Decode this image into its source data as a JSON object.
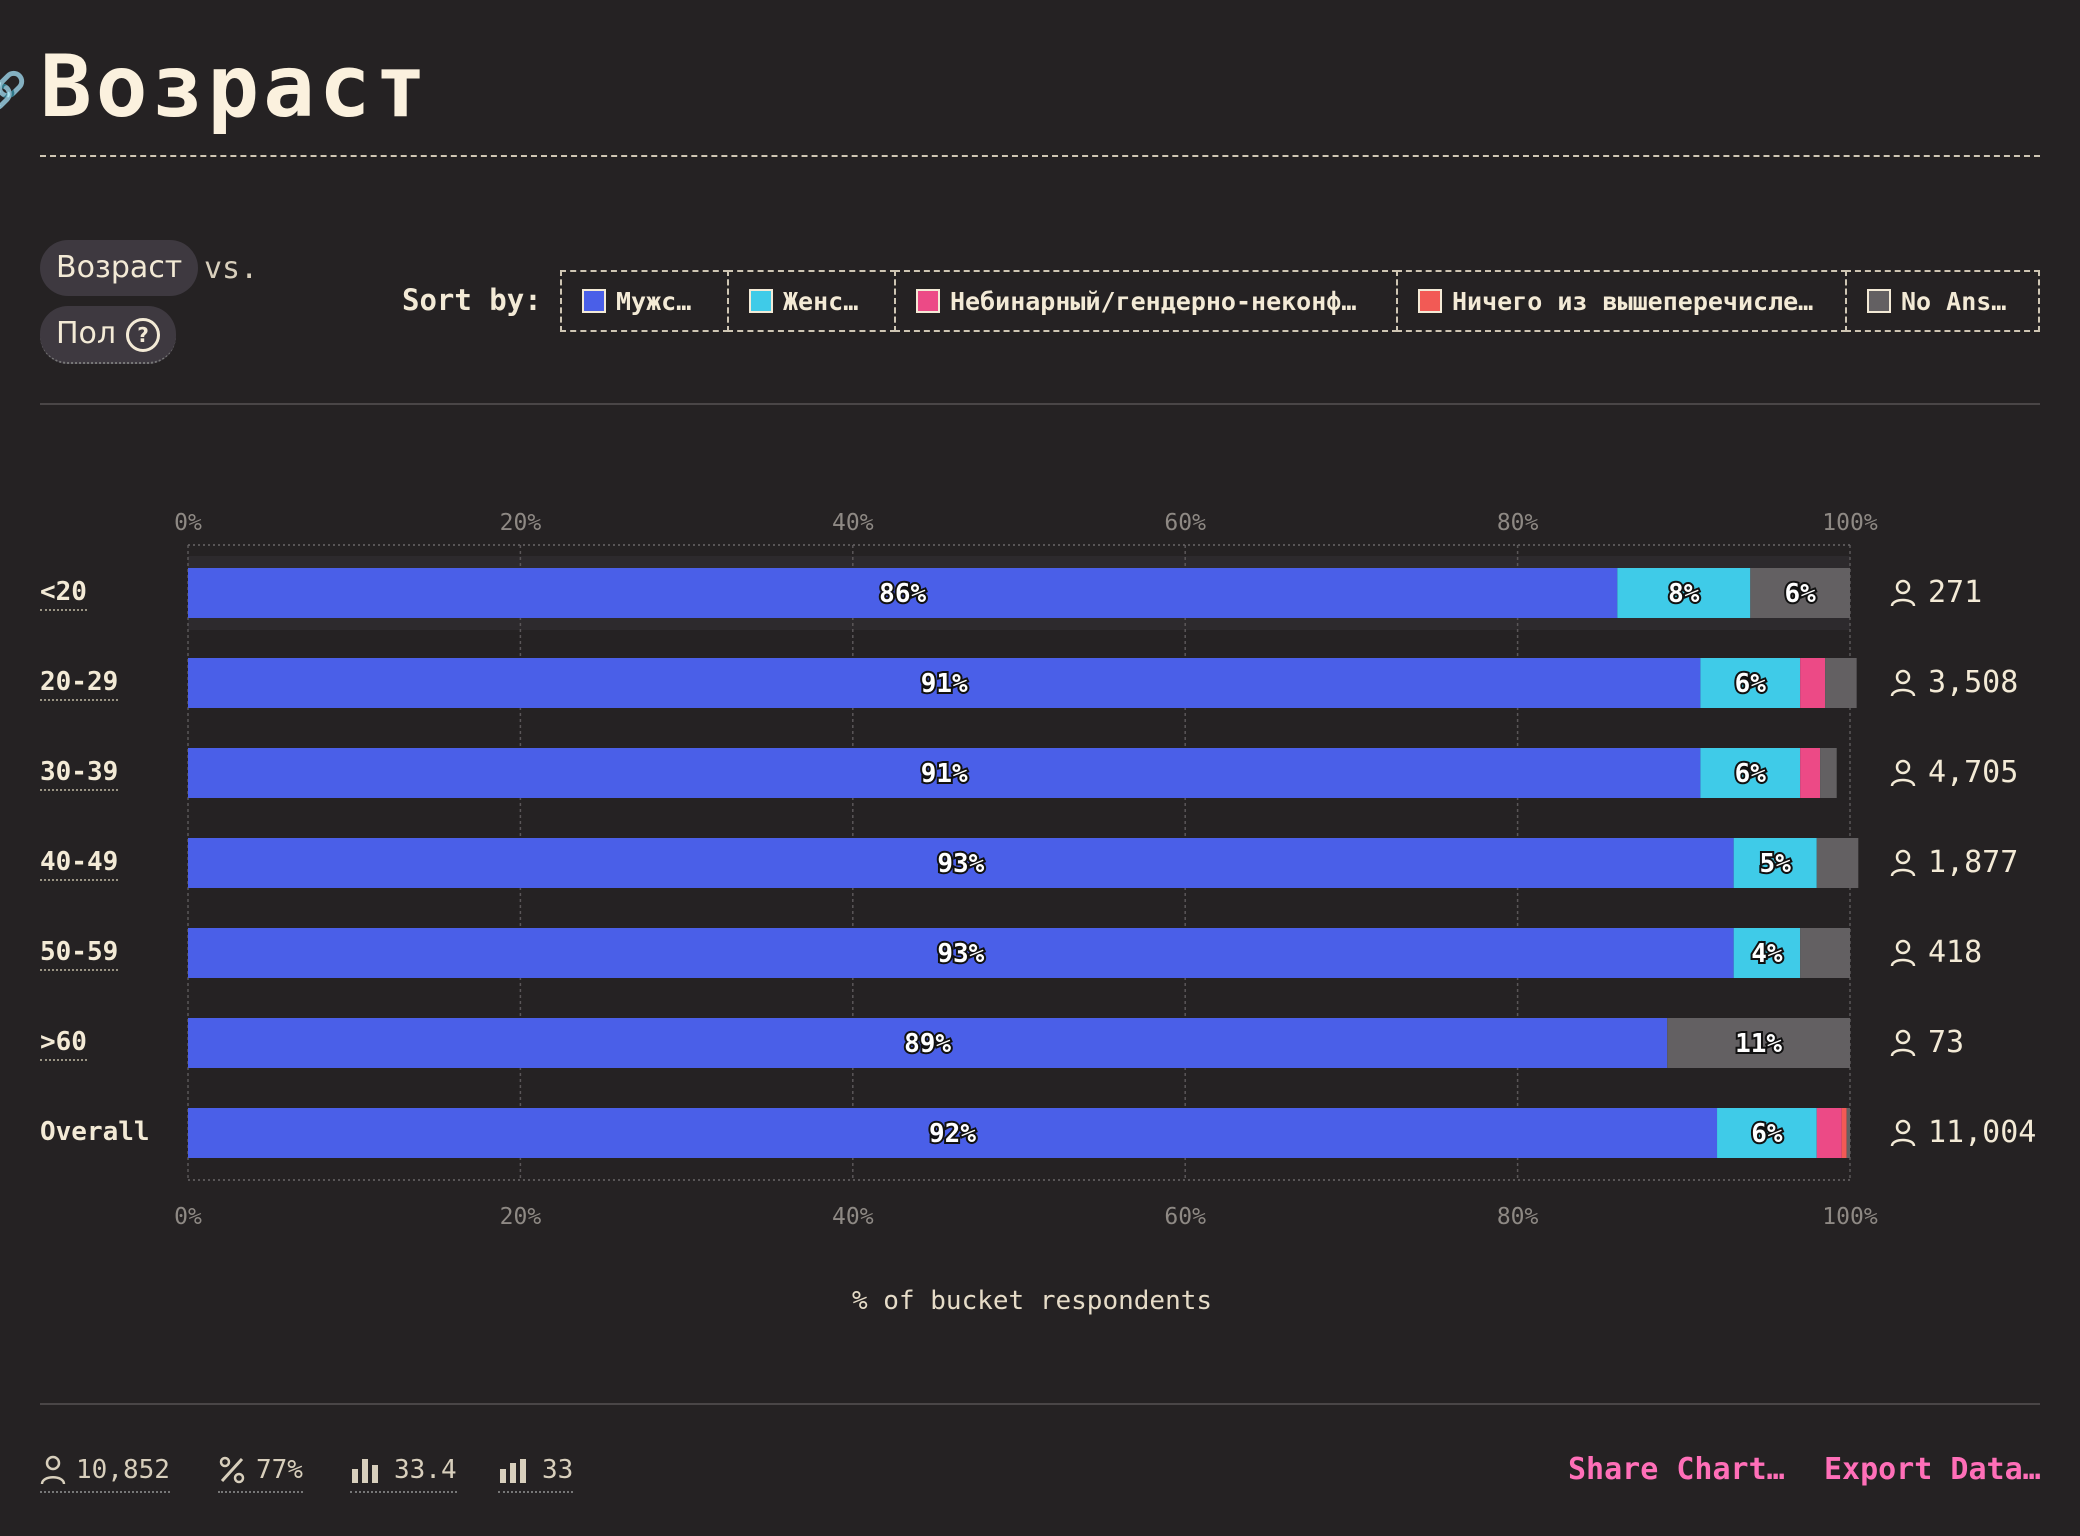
{
  "title": "Возраст",
  "header": {
    "pill_primary": "Возраст",
    "vs_label": "vs.",
    "pill_secondary": "Пол",
    "sort_label": "Sort by:"
  },
  "legend": [
    {
      "label": "Мужс…",
      "color": "#4a5fe8"
    },
    {
      "label": "Женс…",
      "color": "#3fcbe8"
    },
    {
      "label": "Небинарный/гендерно-неконф…",
      "color": "#ec4a86"
    },
    {
      "label": "Ничего из вышеперечисле…",
      "color": "#f25a55"
    },
    {
      "label": "No Ans…",
      "color": "#636062"
    }
  ],
  "chart_data": {
    "type": "bar",
    "orientation": "horizontal-stacked",
    "categories": [
      "<20",
      "20-29",
      "30-39",
      "40-49",
      "50-59",
      ">60",
      "Overall"
    ],
    "series": [
      {
        "name": "Мужс…",
        "color": "#4a5fe8",
        "values": [
          86,
          91,
          91,
          93,
          93,
          89,
          92
        ]
      },
      {
        "name": "Женс…",
        "color": "#3fcbe8",
        "values": [
          8,
          6,
          6,
          5,
          4,
          0,
          6
        ]
      },
      {
        "name": "Небинарный/гендерно-неконф…",
        "color": "#ec4a86",
        "values": [
          0,
          1.5,
          1.2,
          0,
          0,
          0,
          1.5
        ]
      },
      {
        "name": "Ничего из вышеперечисле…",
        "color": "#f25a55",
        "values": [
          0,
          0,
          0,
          0,
          0,
          0,
          0.3
        ]
      },
      {
        "name": "No Ans…",
        "color": "#636062",
        "values": [
          6,
          1.9,
          1.0,
          2.5,
          3.0,
          11,
          0.2
        ]
      }
    ],
    "labels": [
      [
        "86%",
        "8%",
        "",
        "",
        "6%"
      ],
      [
        "91%",
        "6%",
        "",
        "",
        ""
      ],
      [
        "91%",
        "6%",
        "",
        "",
        ""
      ],
      [
        "93%",
        "5%",
        "",
        "",
        ""
      ],
      [
        "93%",
        "4%",
        "",
        "",
        ""
      ],
      [
        "89%",
        "",
        "",
        "",
        "11%"
      ],
      [
        "92%",
        "6%",
        "",
        "",
        ""
      ]
    ],
    "counts": [
      "271",
      "3,508",
      "4,705",
      "1,877",
      "418",
      "73",
      "11,004"
    ],
    "xticks": [
      "0%",
      "20%",
      "40%",
      "60%",
      "80%",
      "100%"
    ],
    "xlim": [
      0,
      100
    ],
    "xlabel": "% of bucket respondents",
    "grid": true
  },
  "footer": {
    "stats": [
      {
        "icon": "person-icon",
        "value": "10,852"
      },
      {
        "icon": "percent-icon",
        "value": "77%"
      },
      {
        "icon": "bar-chart-icon",
        "value": "33.4"
      },
      {
        "icon": "bar-chart-alt-icon",
        "value": "33"
      }
    ],
    "share_label": "Share Chart…",
    "export_label": "Export Data…"
  }
}
